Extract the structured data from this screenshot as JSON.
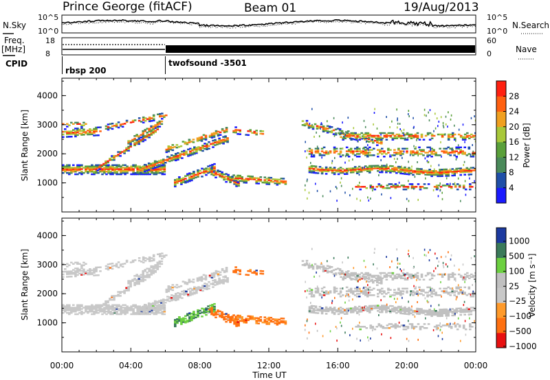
{
  "header": {
    "station": "Prince George (fitACF)",
    "beam": "Beam 01",
    "date": "19/Aug/2013"
  },
  "strips": {
    "nsky_label": "N.Sky",
    "nsky_top": "10^5",
    "nsky_bottom": "10^0",
    "nsearch_label": "N.Search",
    "nsearch_top": "10^5",
    "nsearch_bottom": "10^0",
    "freq_label": "Freq.",
    "freq_unit": "[MHz]",
    "freq_top": "18",
    "freq_bottom": "8",
    "nave_label": "Nave",
    "nave_top": "60",
    "nave_bottom": "0",
    "cpid_label": "CPID",
    "cpid_mode1": "rbsp 200",
    "cpid_mode2": "twofsound -3501"
  },
  "colors": {
    "power": [
      "#1a1aff",
      "#1f4fa8",
      "#4a8a5a",
      "#5aa03a",
      "#a8c83a",
      "#f0a020",
      "#ff6010",
      "#ff2010"
    ],
    "velocity": [
      "#e81010",
      "#ff7010",
      "#ff9a2a",
      "#c8c8c8",
      "#c0c0c0",
      "#6cd040",
      "#3a7a5a",
      "#1c3aa0"
    ]
  },
  "chart_data": [
    {
      "type": "heatmap",
      "name": "power",
      "ylabel": "Slant Range [km]",
      "xlabel": "",
      "yticks": [
        "1000",
        "2000",
        "3000",
        "4000"
      ],
      "ylim": [
        0,
        4600
      ],
      "colorbar": {
        "label": "Power [dB]",
        "ticks": [
          "4",
          "8",
          "12",
          "16",
          "20",
          "24",
          "28"
        ],
        "range": [
          0,
          32
        ]
      }
    },
    {
      "type": "heatmap",
      "name": "velocity",
      "ylabel": "Slant Range [km]",
      "xlabel": "Time UT",
      "xticks": [
        "00:00",
        "04:00",
        "08:00",
        "12:00",
        "16:00",
        "20:00",
        "00:00"
      ],
      "xlim_hours": [
        0,
        24
      ],
      "yticks": [
        "1000",
        "2000",
        "3000",
        "4000"
      ],
      "ylim": [
        0,
        4600
      ],
      "colorbar": {
        "label": "Velocity [m s⁻¹]",
        "ticks": [
          "1000",
          "500",
          "100",
          "25",
          "−25",
          "−100",
          "−500",
          "−1000"
        ]
      }
    }
  ]
}
